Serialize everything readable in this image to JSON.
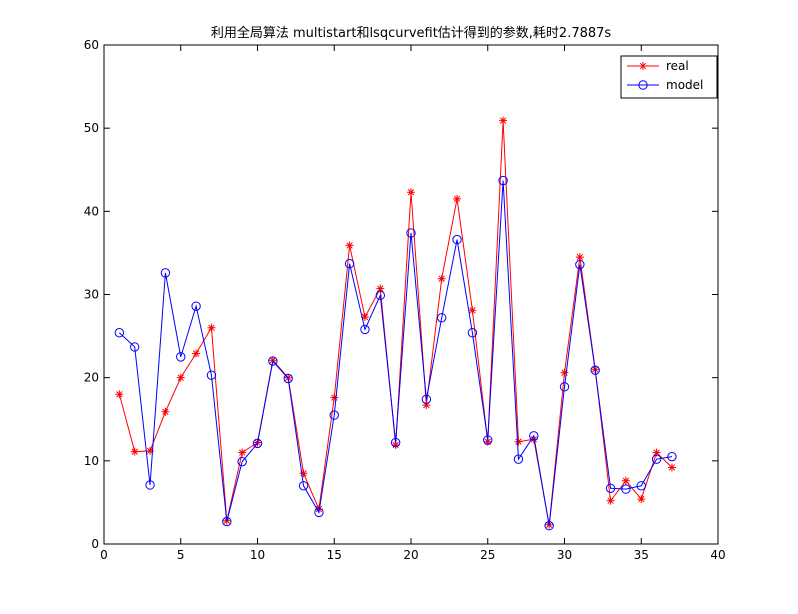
{
  "chart_data": {
    "type": "line",
    "title": "利用全局算法 multistart和lsqcurvefit估计得到的参数,耗时2.7887s",
    "xlabel": "",
    "ylabel": "",
    "xlim": [
      0,
      40
    ],
    "ylim": [
      0,
      60
    ],
    "xticks": [
      0,
      5,
      10,
      15,
      20,
      25,
      30,
      35,
      40
    ],
    "yticks": [
      0,
      10,
      20,
      30,
      40,
      50,
      60
    ],
    "grid": false,
    "legend_position": "top-right",
    "x": [
      1,
      2,
      3,
      4,
      5,
      6,
      7,
      8,
      9,
      10,
      11,
      12,
      13,
      14,
      15,
      16,
      17,
      18,
      19,
      20,
      21,
      22,
      23,
      24,
      25,
      26,
      27,
      28,
      29,
      30,
      31,
      32,
      33,
      34,
      35,
      36,
      37
    ],
    "series": [
      {
        "name": "real",
        "color": "#ff0000",
        "marker": "asterisk",
        "values": [
          18.0,
          11.1,
          11.2,
          15.9,
          20.0,
          22.9,
          26.0,
          2.8,
          11.0,
          12.2,
          22.1,
          20.0,
          8.5,
          4.2,
          17.6,
          35.9,
          27.3,
          30.7,
          11.9,
          42.3,
          16.7,
          31.9,
          41.5,
          28.1,
          12.3,
          50.9,
          12.3,
          12.6,
          2.3,
          20.6,
          34.5,
          21.0,
          5.2,
          7.6,
          5.4,
          11.0,
          9.2
        ]
      },
      {
        "name": "model",
        "color": "#0000ff",
        "marker": "circle",
        "values": [
          25.4,
          23.7,
          7.1,
          32.6,
          22.5,
          28.6,
          20.3,
          2.7,
          9.9,
          12.1,
          22.0,
          19.9,
          7.0,
          3.8,
          15.5,
          33.7,
          25.8,
          29.9,
          12.2,
          37.4,
          17.4,
          27.2,
          36.6,
          25.4,
          12.5,
          43.7,
          10.2,
          13.0,
          2.2,
          18.9,
          33.6,
          20.9,
          6.7,
          6.6,
          7.0,
          10.2,
          10.5
        ]
      }
    ]
  },
  "colors": {
    "background": "#ffffff",
    "axes": "#000000",
    "real": "#ff0000",
    "model": "#0000ff"
  }
}
